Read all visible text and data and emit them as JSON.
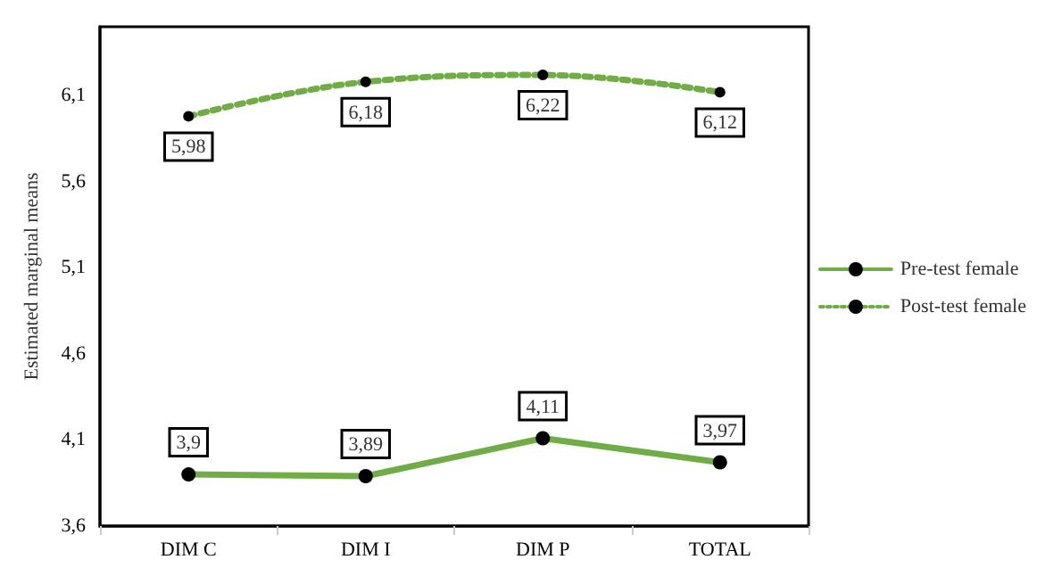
{
  "chart_data": {
    "type": "line",
    "ylabel": "Estimated marginal means",
    "categories": [
      "DIM C",
      "DIM I",
      "DIM P",
      "TOTAL"
    ],
    "series": [
      {
        "name": "Pre-test female",
        "color": "#70ad47",
        "values": [
          3.9,
          3.89,
          4.11,
          3.97
        ],
        "value_labels": [
          "3,9",
          "3,89",
          "4,11",
          "3,97"
        ],
        "line_style": "solid"
      },
      {
        "name": "Post-test female",
        "color": "#70ad47",
        "values": [
          5.98,
          6.18,
          6.22,
          6.12
        ],
        "value_labels": [
          "5,98",
          "6,18",
          "6,22",
          "6,12"
        ],
        "line_style": "dotted"
      }
    ],
    "ylim": [
      3.6,
      6.5
    ],
    "yticks": [
      {
        "value": 3.6,
        "label": "3,6"
      },
      {
        "value": 4.1,
        "label": "4,1"
      },
      {
        "value": 4.6,
        "label": "4,6"
      },
      {
        "value": 5.1,
        "label": "5,1"
      },
      {
        "value": 5.6,
        "label": "5,6"
      },
      {
        "value": 6.1,
        "label": "6,1"
      }
    ],
    "grid": false,
    "legend": "right",
    "marker": "circle"
  }
}
